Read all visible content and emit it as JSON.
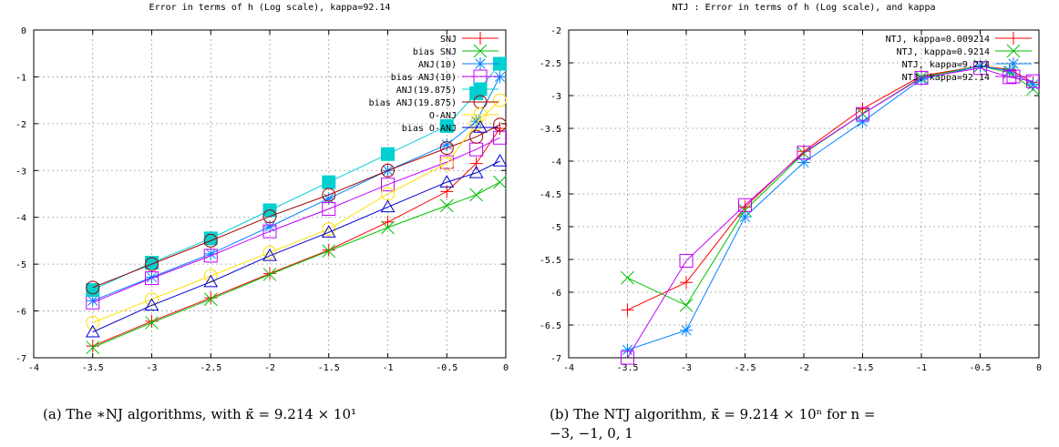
{
  "chart_data": [
    {
      "type": "line",
      "title": "Error in terms of h (Log scale), kappa=92.14",
      "caption": "(a) The ∗NJ algorithms, with κ̄ = 9.214 × 10¹",
      "xlim": [
        -4,
        0
      ],
      "ylim": [
        -7,
        0
      ],
      "x_ticks": [
        "-4",
        "-3.5",
        "-3",
        "-2.5",
        "-2",
        "-1.5",
        "-1",
        "-0.5",
        "0"
      ],
      "y_ticks": [
        "-7",
        "-6",
        "-5",
        "-4",
        "-3",
        "-2",
        "-1",
        "0"
      ],
      "grid": true,
      "legend_position": "top-right",
      "x": [
        -3.5,
        -3.0,
        -2.5,
        -2.0,
        -1.5,
        -1.0,
        -0.5,
        -0.25,
        -0.05
      ],
      "series": [
        {
          "name": "SNJ",
          "color": "#ff0000",
          "marker": "plus",
          "values": [
            -6.75,
            -6.22,
            -5.72,
            -5.2,
            -4.7,
            -4.1,
            -3.45,
            -2.85,
            -2.1
          ]
        },
        {
          "name": "bias SNJ",
          "color": "#00c000",
          "marker": "x",
          "values": [
            -6.78,
            -6.25,
            -5.75,
            -5.22,
            -4.72,
            -4.22,
            -3.75,
            -3.52,
            -3.25
          ]
        },
        {
          "name": "ANJ(10)",
          "color": "#0080ff",
          "marker": "star",
          "values": [
            -5.78,
            -5.28,
            -4.78,
            -4.2,
            -3.6,
            -3.0,
            -2.45,
            -1.95,
            -1.0
          ]
        },
        {
          "name": "bias ANJ(10)",
          "color": "#c000ff",
          "marker": "square",
          "values": [
            -5.82,
            -5.3,
            -4.82,
            -4.3,
            -3.82,
            -3.3,
            -2.82,
            -2.55,
            -2.3
          ]
        },
        {
          "name": "ANJ(19.875)",
          "color": "#00d0d0",
          "marker": "filled-square",
          "values": [
            -5.55,
            -4.97,
            -4.45,
            -3.85,
            -3.25,
            -2.65,
            -2.05,
            -1.35,
            -0.72
          ]
        },
        {
          "name": "bias ANJ(19.875)",
          "color": "#a00000",
          "marker": "circle",
          "values": [
            -5.5,
            -5.0,
            -4.5,
            -3.98,
            -3.52,
            -3.0,
            -2.52,
            -2.28,
            -2.02
          ]
        },
        {
          "name": "O-ANJ",
          "color": "#ffe000",
          "marker": "open-circle",
          "values": [
            -6.25,
            -5.75,
            -5.25,
            -4.75,
            -4.25,
            -3.5,
            -2.85,
            -2.0,
            -1.5
          ]
        },
        {
          "name": "bias O-ANJ",
          "color": "#0000d0",
          "marker": "triangle",
          "values": [
            -6.45,
            -5.88,
            -5.38,
            -4.82,
            -4.32,
            -3.78,
            -3.25,
            -3.05,
            -2.8
          ]
        }
      ]
    },
    {
      "type": "line",
      "title": "NTJ : Error in terms of h (Log scale), and kappa",
      "caption_line1": "(b) The NTJ algorithm, κ̄ = 9.214 × 10ⁿ for n =",
      "caption_line2": "−3, −1, 0, 1",
      "xlim": [
        -4,
        0
      ],
      "ylim": [
        -7,
        -2
      ],
      "x_ticks": [
        "-4",
        "-3.5",
        "-3",
        "-2.5",
        "-2",
        "-1.5",
        "-1",
        "-0.5",
        "0"
      ],
      "y_ticks": [
        "-7",
        "-6.5",
        "-6",
        "-5.5",
        "-5",
        "-4.5",
        "-4",
        "-3.5",
        "-3",
        "-2.5",
        "-2"
      ],
      "grid": true,
      "legend_position": "top-right",
      "x": [
        -3.5,
        -3.0,
        -2.5,
        -2.0,
        -1.5,
        -1.0,
        -0.5,
        -0.25,
        -0.05
      ],
      "series": [
        {
          "name": "NTJ, kappa=0.009214",
          "color": "#ff0000",
          "marker": "plus",
          "values": [
            -6.27,
            -5.85,
            -4.7,
            -3.85,
            -3.2,
            -2.7,
            -2.55,
            -2.6,
            -2.8
          ]
        },
        {
          "name": "NTJ, kappa=0.9214",
          "color": "#00c000",
          "marker": "x",
          "values": [
            -5.78,
            -6.2,
            -4.75,
            -3.88,
            -3.28,
            -2.72,
            -2.55,
            -2.65,
            -2.9
          ]
        },
        {
          "name": "NTJ, kappa=9.214",
          "color": "#0080ff",
          "marker": "star",
          "values": [
            -6.88,
            -6.58,
            -4.85,
            -4.02,
            -3.4,
            -2.75,
            -2.55,
            -2.62,
            -2.83
          ]
        },
        {
          "name": "NTJ, kappa=92.14",
          "color": "#c000ff",
          "marker": "square",
          "values": [
            -7.0,
            -5.52,
            -4.67,
            -3.87,
            -3.28,
            -2.73,
            -2.58,
            -2.72,
            -2.78
          ]
        }
      ]
    }
  ]
}
